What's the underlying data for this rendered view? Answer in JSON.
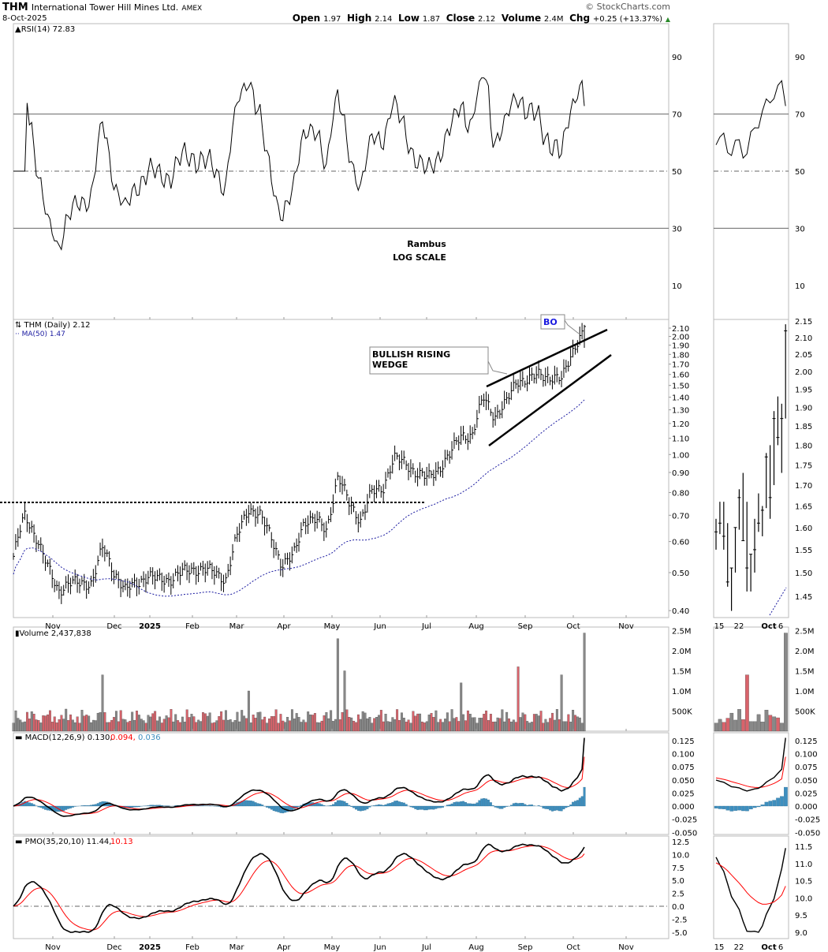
{
  "header": {
    "symbol": "THM",
    "name": "International Tower Hill Mines Ltd.",
    "exchange": "AMEX",
    "date": "8-Oct-2025",
    "source": "© StockCharts.com",
    "open_label": "Open",
    "open": "1.97",
    "high_label": "High",
    "high": "2.14",
    "low_label": "Low",
    "low": "1.87",
    "close_label": "Close",
    "close": "2.12",
    "volume_label": "Volume",
    "volume": "2.4M",
    "chg_label": "Chg",
    "chg": "+0.25 (+13.37%)"
  },
  "colors": {
    "up": "#888888",
    "down": "#d9636b",
    "ma": "#1a1aa0",
    "signal": "#ff0000",
    "hist": "#3e8fbf",
    "rsi_fill": "#5f8a5f"
  },
  "chart_data": {
    "type": "line",
    "title": "THM (Daily) 2.12",
    "ma_label": "MA(50) 1.47",
    "rsi_label": "RSI(14) 72.83",
    "volume_label": "Volume 2,437,838",
    "macd_label": "MACD(12,26,9) 0.130,",
    "macd_signal": "0.094,",
    "macd_hist": "0.036",
    "pmo_label": "PMO(35,20,10) 11.44,",
    "pmo_signal": "10.13",
    "annotations": {
      "rambus": "Rambus",
      "scale": "LOG SCALE",
      "wedge": [
        "BULLISH RISING",
        "WEDGE"
      ],
      "bo": "BO"
    },
    "resistance_level": 0.755,
    "weekly_closes": [
      0.55,
      0.7,
      0.62,
      0.52,
      0.45,
      0.47,
      0.47,
      0.47,
      0.58,
      0.5,
      0.45,
      0.47,
      0.49,
      0.48,
      0.48,
      0.5,
      0.51,
      0.51,
      0.5,
      0.48,
      0.62,
      0.73,
      0.7,
      0.62,
      0.52,
      0.55,
      0.68,
      0.68,
      0.64,
      0.88,
      0.75,
      0.68,
      0.8,
      0.82,
      0.98,
      0.95,
      0.9,
      0.87,
      0.92,
      1.0,
      1.12,
      1.12,
      1.4,
      1.25,
      1.35,
      1.55,
      1.55,
      1.6,
      1.58,
      1.55,
      1.85,
      2.12
    ],
    "volume_spikes": [
      {
        "week": 8,
        "value": 1.4
      },
      {
        "week": 29,
        "value": 2.3
      },
      {
        "week": 29.6,
        "value": 1.5
      },
      {
        "week": 45,
        "value": 1.6
      },
      {
        "week": 21,
        "value": 1.0
      },
      {
        "week": 40,
        "value": 1.2
      },
      {
        "week": 49,
        "value": 1.4
      },
      {
        "week": 51,
        "value": 1.5
      },
      {
        "week": 51.8,
        "value": 2.44
      }
    ],
    "recent_bars_hlc": [
      [
        1.62,
        1.55,
        1.59
      ],
      [
        1.66,
        1.585,
        1.61
      ],
      [
        1.66,
        1.55,
        1.58
      ],
      [
        1.61,
        1.47,
        1.48
      ],
      [
        1.51,
        1.42,
        1.51
      ],
      [
        1.6,
        1.5,
        1.6
      ],
      [
        1.69,
        1.595,
        1.67
      ],
      [
        1.73,
        1.57,
        1.57
      ],
      [
        1.66,
        1.46,
        1.51
      ],
      [
        1.54,
        1.46,
        1.54
      ],
      [
        1.62,
        1.5,
        1.55
      ],
      [
        1.68,
        1.59,
        1.61
      ],
      [
        1.65,
        1.58,
        1.64
      ],
      [
        1.78,
        1.645,
        1.77
      ],
      [
        1.8,
        1.62,
        1.67
      ],
      [
        1.89,
        1.7,
        1.87
      ],
      [
        1.93,
        1.8,
        1.82
      ],
      [
        1.91,
        1.73,
        1.87
      ],
      [
        2.14,
        1.87,
        2.12
      ]
    ],
    "x_ticks": [
      "Nov",
      "Dec",
      "2025",
      "Feb",
      "Mar",
      "Apr",
      "May",
      "Jun",
      "Jul",
      "Aug",
      "Sep",
      "Oct",
      "Nov"
    ],
    "recent_x_ticks": [
      "15",
      "22",
      "Oct",
      "6"
    ],
    "rsi_ticks": [
      "90",
      "70",
      "50",
      "30",
      "10"
    ],
    "price_ticks": [
      "2.10",
      "2.00",
      "1.90",
      "1.80",
      "1.70",
      "1.60",
      "1.50",
      "1.40",
      "1.30",
      "1.20",
      "1.10",
      "1.00",
      "0.90",
      "0.80",
      "0.70",
      "0.60",
      "0.50",
      "0.40"
    ],
    "recent_price_ticks": [
      "2.15",
      "2.10",
      "2.05",
      "2.00",
      "1.95",
      "1.90",
      "1.85",
      "1.80",
      "1.75",
      "1.70",
      "1.65",
      "1.60",
      "1.55",
      "1.50",
      "1.45"
    ],
    "volume_ticks": [
      "2.5M",
      "2.0M",
      "1.5M",
      "1.0M",
      "500K"
    ],
    "macd_ticks": [
      "0.125",
      "0.100",
      "0.075",
      "0.050",
      "0.025",
      "0.000",
      "-0.025",
      "-0.050"
    ],
    "pmo_ticks": [
      "12.5",
      "10.0",
      "7.5",
      "5.0",
      "2.5",
      "0.0",
      "-2.5",
      "-5.0"
    ],
    "recent_pmo_ticks": [
      "11.5",
      "11.0",
      "10.5",
      "10.0",
      "9.5",
      "9.0"
    ]
  }
}
